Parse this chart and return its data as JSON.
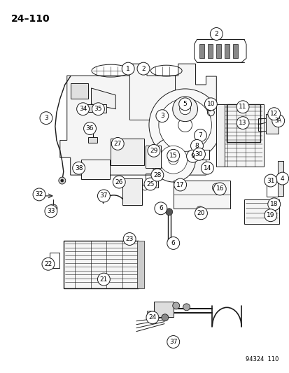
{
  "title": "24–110",
  "catalog_number": "94324  110",
  "bg": "#ffffff",
  "lc": "#1a1a1a",
  "fig_w": 4.14,
  "fig_h": 5.33,
  "dpi": 100
}
